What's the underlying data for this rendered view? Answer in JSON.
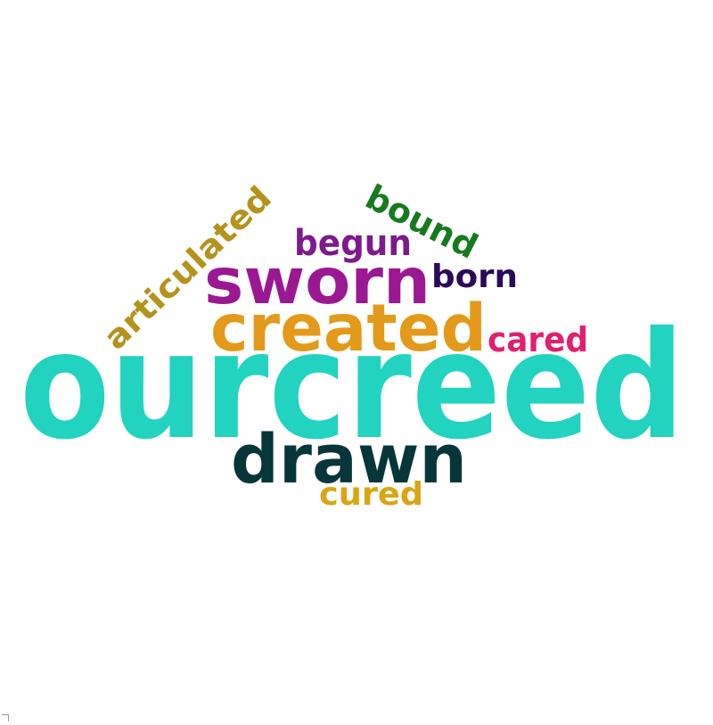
{
  "word_cloud": {
    "words": [
      {
        "id": "ourcreed",
        "text": "ourcreed",
        "color": "#22d3c0"
      },
      {
        "id": "drawn",
        "text": "drawn",
        "color": "#06363a"
      },
      {
        "id": "created",
        "text": "created",
        "color": "#e39a1b"
      },
      {
        "id": "sworn",
        "text": "sworn",
        "color": "#9b1893"
      },
      {
        "id": "born",
        "text": "born",
        "color": "#2a0a5a"
      },
      {
        "id": "begun",
        "text": "begun",
        "color": "#7d1a8c"
      },
      {
        "id": "bound",
        "text": "bound",
        "color": "#177a1d"
      },
      {
        "id": "articulated",
        "text": "articulated",
        "color": "#b5921c"
      },
      {
        "id": "cared",
        "text": "cared",
        "color": "#e0206e"
      },
      {
        "id": "cured",
        "text": "cured",
        "color": "#d9a514"
      }
    ]
  }
}
